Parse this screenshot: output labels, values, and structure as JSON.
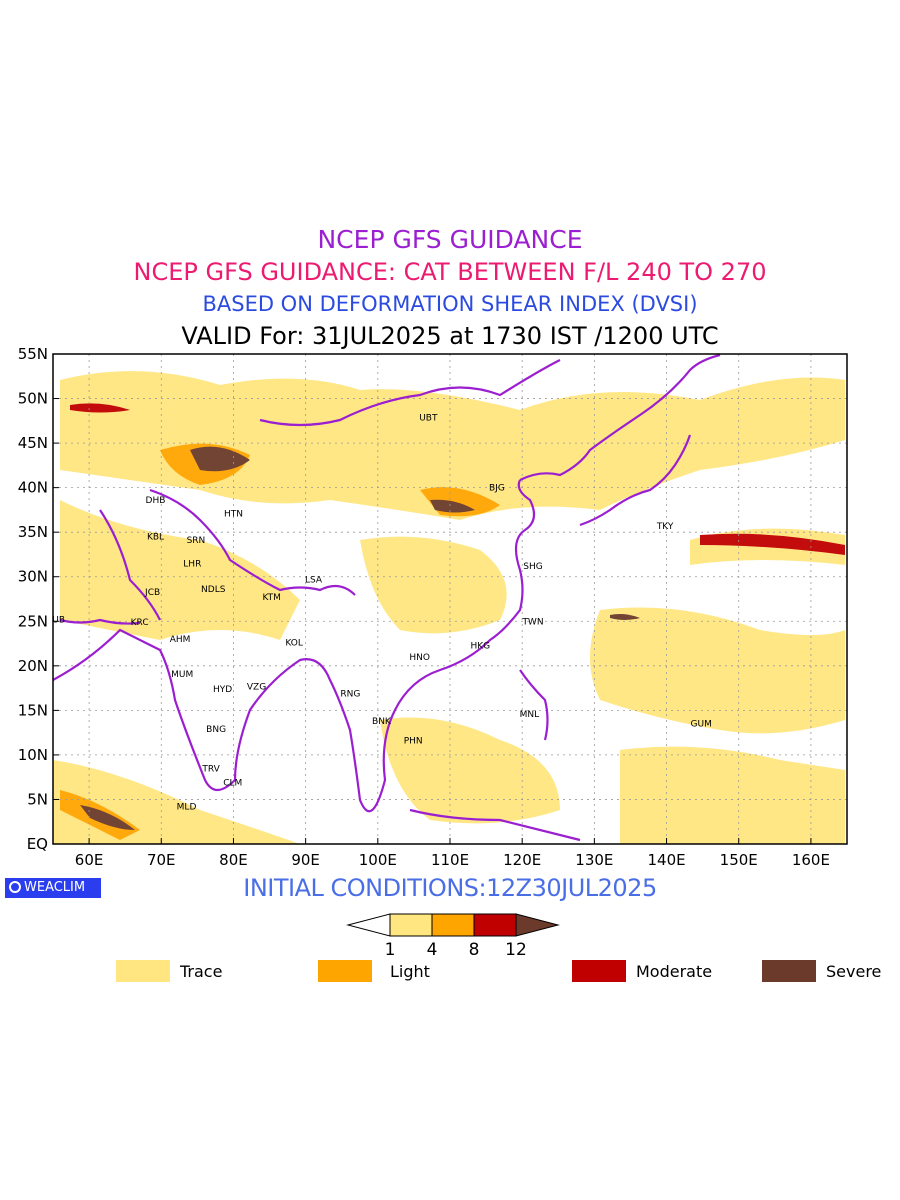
{
  "titles": {
    "line1": "NCEP GFS GUIDANCE",
    "line2": "NCEP GFS GUIDANCE: CAT BETWEEN F/L 240 TO 270",
    "line3": "BASED ON DEFORMATION SHEAR INDEX (DVSI)",
    "line4": "VALID For: 31JUL2025 at 1730 IST /1200 UTC"
  },
  "map": {
    "lon_range": [
      55,
      165
    ],
    "lat_range": [
      0,
      55
    ],
    "lon_ticks": [
      "60E",
      "70E",
      "80E",
      "90E",
      "100E",
      "110E",
      "120E",
      "130E",
      "140E",
      "150E",
      "160E"
    ],
    "lat_ticks": [
      "EQ",
      "5N",
      "10N",
      "15N",
      "20N",
      "25N",
      "30N",
      "35N",
      "40N",
      "45N",
      "50N",
      "55N"
    ],
    "gridlines": true,
    "stations": [
      {
        "code": "UBT",
        "lon": 107,
        "lat": 47.9
      },
      {
        "code": "BJG",
        "lon": 116.5,
        "lat": 40
      },
      {
        "code": "DHB",
        "lon": 69.2,
        "lat": 38.6
      },
      {
        "code": "HTN",
        "lon": 80,
        "lat": 37.1
      },
      {
        "code": "TKY",
        "lon": 139.8,
        "lat": 35.7
      },
      {
        "code": "KBL",
        "lon": 69.2,
        "lat": 34.5
      },
      {
        "code": "SRN",
        "lon": 74.8,
        "lat": 34.1
      },
      {
        "code": "LHR",
        "lon": 74.3,
        "lat": 31.5
      },
      {
        "code": "SHG",
        "lon": 121.5,
        "lat": 31.2
      },
      {
        "code": "LSA",
        "lon": 91.1,
        "lat": 29.7
      },
      {
        "code": "JCB",
        "lon": 68.8,
        "lat": 28.3
      },
      {
        "code": "NDLS",
        "lon": 77.2,
        "lat": 28.6
      },
      {
        "code": "KTM",
        "lon": 85.3,
        "lat": 27.7
      },
      {
        "code": "DUB",
        "lon": 55.3,
        "lat": 25.2
      },
      {
        "code": "TWN",
        "lon": 121.5,
        "lat": 25
      },
      {
        "code": "KRC",
        "lon": 67,
        "lat": 24.9
      },
      {
        "code": "AHM",
        "lon": 72.6,
        "lat": 23
      },
      {
        "code": "KOL",
        "lon": 88.4,
        "lat": 22.6
      },
      {
        "code": "HKG",
        "lon": 114.2,
        "lat": 22.3
      },
      {
        "code": "HNO",
        "lon": 105.8,
        "lat": 21
      },
      {
        "code": "MUM",
        "lon": 72.9,
        "lat": 19.1
      },
      {
        "code": "HYD",
        "lon": 78.5,
        "lat": 17.4
      },
      {
        "code": "VZG",
        "lon": 83.2,
        "lat": 17.7
      },
      {
        "code": "RNG",
        "lon": 96.2,
        "lat": 16.9
      },
      {
        "code": "MNL",
        "lon": 121,
        "lat": 14.6
      },
      {
        "code": "BNK",
        "lon": 100.5,
        "lat": 13.8
      },
      {
        "code": "GUM",
        "lon": 144.8,
        "lat": 13.5
      },
      {
        "code": "BNG",
        "lon": 77.6,
        "lat": 12.9
      },
      {
        "code": "PHN",
        "lon": 104.9,
        "lat": 11.6
      },
      {
        "code": "TRV",
        "lon": 76.9,
        "lat": 8.5
      },
      {
        "code": "CLM",
        "lon": 79.9,
        "lat": 6.9
      },
      {
        "code": "MLD",
        "lon": 73.5,
        "lat": 4.2
      }
    ]
  },
  "initial_conditions": "INITIAL CONDITIONS:12Z30JUL2025",
  "logo": "WEACLIM",
  "colorbar": {
    "levels": [
      "1",
      "4",
      "8",
      "12"
    ],
    "colors": [
      "#ffe680",
      "#ffa500",
      "#c00000",
      "#6b3a2a"
    ]
  },
  "legend": [
    {
      "label": "Trace",
      "color": "#ffe680"
    },
    {
      "label": "Light",
      "color": "#ffa500"
    },
    {
      "label": "Moderate",
      "color": "#c00000"
    },
    {
      "label": "Severe",
      "color": "#6b3a2a"
    }
  ]
}
